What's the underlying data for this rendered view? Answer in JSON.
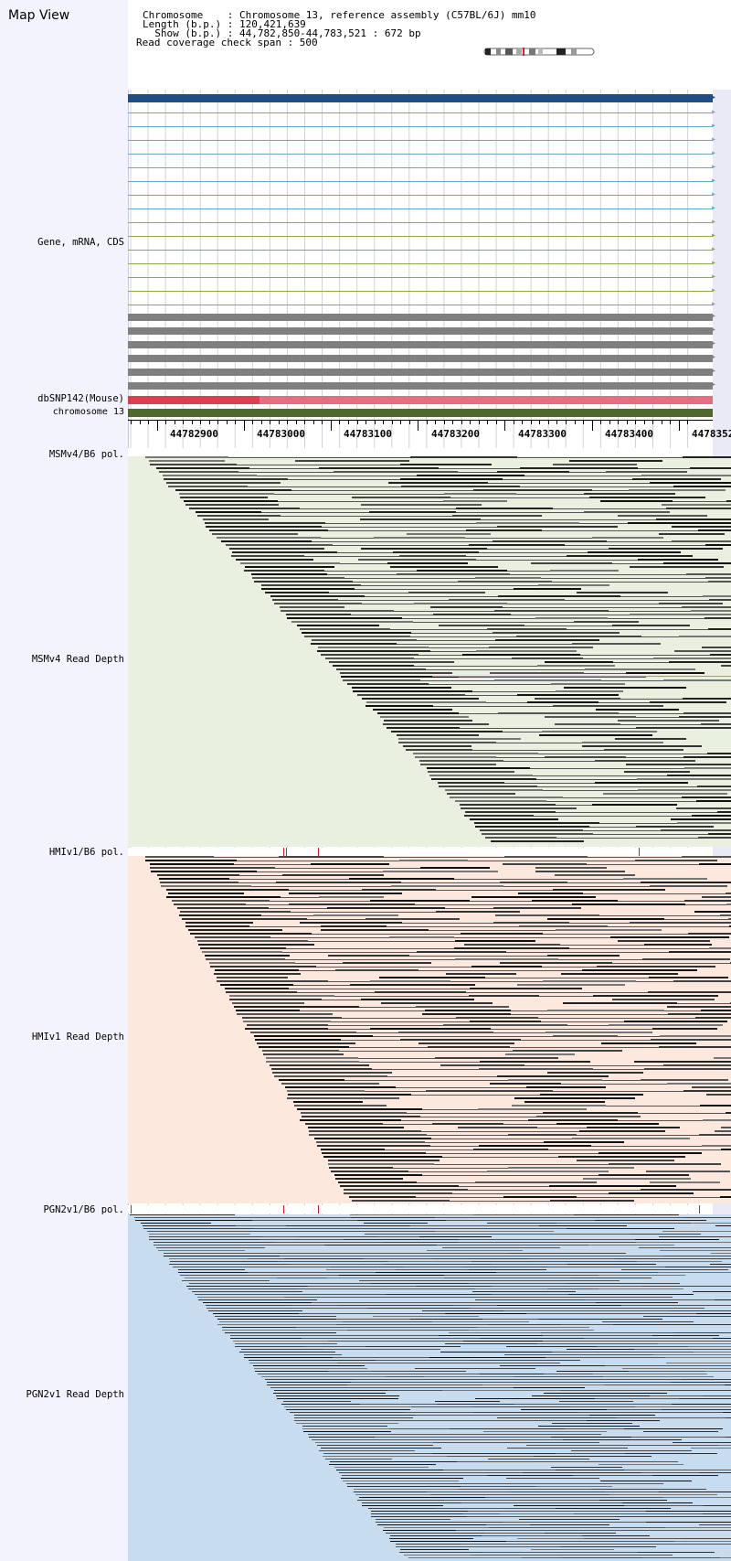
{
  "app": {
    "title": "Map View"
  },
  "header": {
    "chromosome_line": "Chromosome    : Chromosome 13, reference assembly (C57BL/6J) mm10",
    "length_line": "Length (b.p.) : 120,421,639",
    "show_line": "  Show (b.p.) : 44,782,850-44,783,521 : 672 bp",
    "coverage_line": "Read coverage check span : 500"
  },
  "track_labels": {
    "gene": "Gene, mRNA, CDS",
    "snp": "dbSNP142(Mouse)",
    "chromosome": "chromosome 13",
    "msm_pol": "MSMv4/B6 pol.",
    "msm_depth": "MSMv4 Read Depth",
    "hmi_pol": "HMIv1/B6 pol.",
    "hmi_depth": "HMIv1 Read Depth",
    "pgn_pol": "PGN2v1/B6 pol.",
    "pgn_depth": "PGN2v1 Read Depth"
  },
  "ruler": {
    "labels": [
      "44782900",
      "44783000",
      "44783100",
      "44783200",
      "44783300",
      "44783400",
      "4478352"
    ]
  },
  "colors": {
    "gene_bar": "#1f4e82",
    "mrna_blue": "#6ba6c8",
    "mrna_green": "#8fa850",
    "cds_gray": "#808080",
    "snp_dark": "#d94050",
    "snp_light": "#e27080",
    "chromosome_bar": "#4e6a2a",
    "msm_bg": "#eaf0e0",
    "hmi_bg": "#fce8dc",
    "pgn_bg": "#c8dcf0"
  },
  "icons": {
    "arrow": "arrow-right-icon"
  }
}
